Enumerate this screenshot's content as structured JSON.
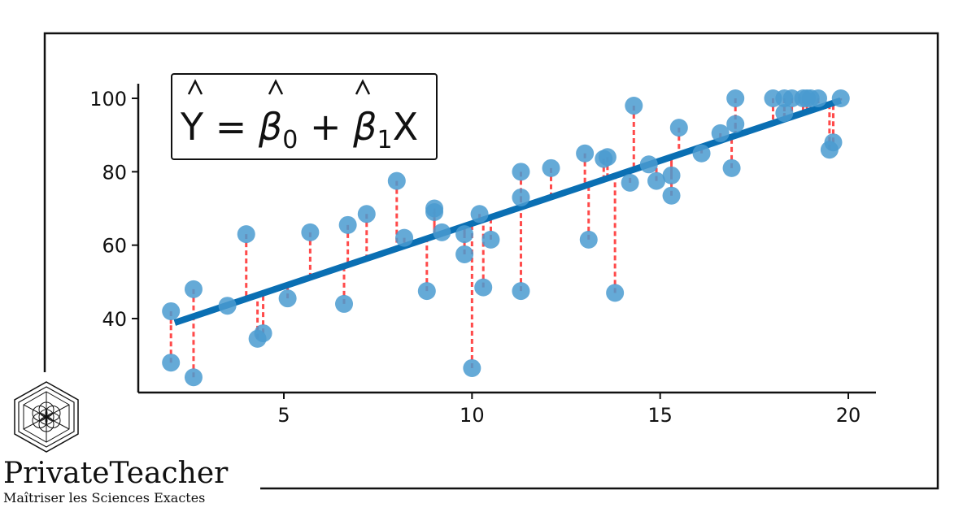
{
  "chart_data": {
    "type": "scatter",
    "title": "",
    "xlabel": "",
    "ylabel": "",
    "xlim": [
      1.5,
      20.7
    ],
    "ylim": [
      20,
      104
    ],
    "x_ticks": [
      5,
      10,
      15,
      20
    ],
    "y_ticks": [
      40,
      60,
      80,
      100
    ],
    "grid": false,
    "point_color": "#4a9bd0",
    "fit_color": "#0a6fb3",
    "residual_color": "#ff4a4a",
    "fit_line": {
      "intercept": 31.7,
      "slope": 3.42,
      "x_start": 2.1,
      "x_end": 19.8
    },
    "equation": {
      "y": "Y",
      "eq": " = ",
      "b": "β",
      "sub0": "0",
      "plus": " + ",
      "sub1": "1",
      "x": "X"
    },
    "points": [
      {
        "x": 2.0,
        "y": 42
      },
      {
        "x": 2.0,
        "y": 28
      },
      {
        "x": 2.6,
        "y": 48
      },
      {
        "x": 2.6,
        "y": 24
      },
      {
        "x": 3.5,
        "y": 43.5
      },
      {
        "x": 4.0,
        "y": 63
      },
      {
        "x": 4.3,
        "y": 34.5
      },
      {
        "x": 4.45,
        "y": 36
      },
      {
        "x": 5.1,
        "y": 45.5
      },
      {
        "x": 5.7,
        "y": 63.5
      },
      {
        "x": 6.6,
        "y": 44
      },
      {
        "x": 6.7,
        "y": 65.5
      },
      {
        "x": 7.2,
        "y": 68.5
      },
      {
        "x": 8.0,
        "y": 77.5
      },
      {
        "x": 8.2,
        "y": 62
      },
      {
        "x": 8.8,
        "y": 47.5
      },
      {
        "x": 9.0,
        "y": 70
      },
      {
        "x": 9.0,
        "y": 69
      },
      {
        "x": 9.2,
        "y": 63.5
      },
      {
        "x": 9.8,
        "y": 63
      },
      {
        "x": 9.8,
        "y": 57.5
      },
      {
        "x": 10.0,
        "y": 26.5
      },
      {
        "x": 10.2,
        "y": 68.5
      },
      {
        "x": 10.3,
        "y": 48.5
      },
      {
        "x": 10.5,
        "y": 61.5
      },
      {
        "x": 11.3,
        "y": 80
      },
      {
        "x": 11.3,
        "y": 73
      },
      {
        "x": 11.3,
        "y": 47.5
      },
      {
        "x": 12.1,
        "y": 81
      },
      {
        "x": 13.0,
        "y": 85
      },
      {
        "x": 13.1,
        "y": 61.5
      },
      {
        "x": 13.5,
        "y": 83.5
      },
      {
        "x": 13.6,
        "y": 84
      },
      {
        "x": 13.8,
        "y": 47
      },
      {
        "x": 14.2,
        "y": 77
      },
      {
        "x": 14.3,
        "y": 98
      },
      {
        "x": 14.7,
        "y": 82
      },
      {
        "x": 14.9,
        "y": 77.5
      },
      {
        "x": 15.3,
        "y": 73.5
      },
      {
        "x": 15.3,
        "y": 79
      },
      {
        "x": 15.5,
        "y": 92
      },
      {
        "x": 16.1,
        "y": 85
      },
      {
        "x": 16.6,
        "y": 90.5
      },
      {
        "x": 16.9,
        "y": 81
      },
      {
        "x": 17.0,
        "y": 93
      },
      {
        "x": 17.0,
        "y": 100
      },
      {
        "x": 18.0,
        "y": 100
      },
      {
        "x": 18.3,
        "y": 100
      },
      {
        "x": 18.3,
        "y": 96
      },
      {
        "x": 18.5,
        "y": 100
      },
      {
        "x": 18.8,
        "y": 100
      },
      {
        "x": 18.9,
        "y": 100
      },
      {
        "x": 19.0,
        "y": 100
      },
      {
        "x": 19.2,
        "y": 100
      },
      {
        "x": 19.5,
        "y": 86
      },
      {
        "x": 19.6,
        "y": 88
      },
      {
        "x": 19.8,
        "y": 100
      }
    ]
  },
  "brand": {
    "name": "PrivateTeacher",
    "tagline": "Maîtriser les Sciences Exactes"
  }
}
